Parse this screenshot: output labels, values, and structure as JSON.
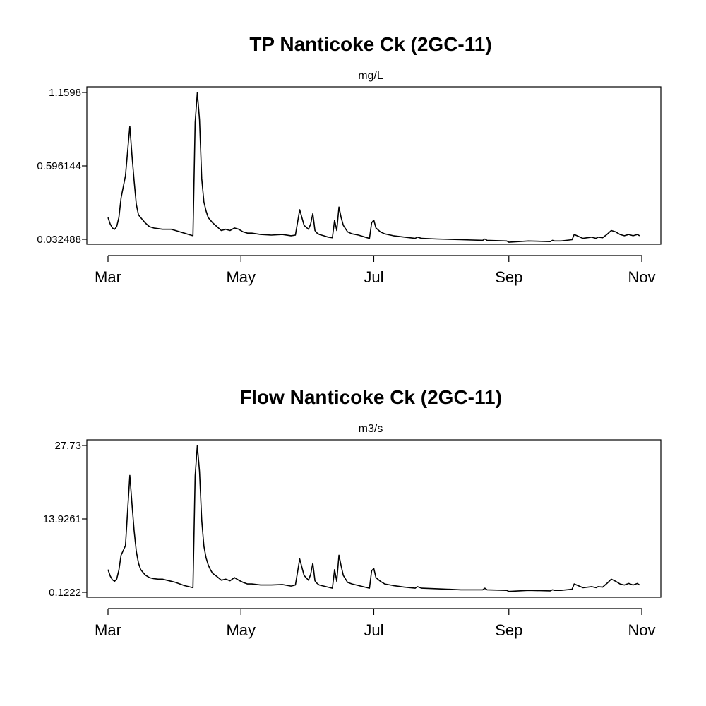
{
  "chart_data": [
    {
      "type": "line",
      "title": "TP Nanticoke Ck (2GC-11)",
      "subtitle": "mg/L",
      "yticks": [
        "1.1598",
        "0.596144",
        "0.032488"
      ],
      "ylim": [
        0.032488,
        1.1598
      ],
      "xticks": [
        "Mar",
        "May",
        "Jul",
        "Sep",
        "Nov"
      ],
      "xtick_dates": [
        "Mar 1",
        "May 1",
        "Jul 1",
        "Sep 1",
        "Nov 1"
      ],
      "xlim": [
        "Mar 1",
        "Nov 1"
      ],
      "series": [
        {
          "x": [
            "Mar 1",
            "Mar 2",
            "Mar 3",
            "Mar 4",
            "Mar 5",
            "Mar 6",
            "Mar 7",
            "Mar 9",
            "Mar 11",
            "Mar 12",
            "Mar 13",
            "Mar 14",
            "Mar 15",
            "Mar 16",
            "Mar 18",
            "Mar 20",
            "Mar 22",
            "Mar 24",
            "Mar 26",
            "Mar 28",
            "Mar 30",
            "Apr 1",
            "Apr 3",
            "Apr 5",
            "Apr 7",
            "Apr 9",
            "Apr 10",
            "Apr 11",
            "Apr 12",
            "Apr 13",
            "Apr 14",
            "Apr 15",
            "Apr 16",
            "Apr 17",
            "Apr 18",
            "Apr 20",
            "Apr 22",
            "Apr 24",
            "Apr 26",
            "Apr 28",
            "Apr 30",
            "May 2",
            "May 4",
            "May 6",
            "May 10",
            "May 15",
            "May 20",
            "May 24",
            "May 26",
            "May 28",
            "May 30",
            "Jun 1",
            "Jun 2",
            "Jun 3",
            "Jun 4",
            "Jun 5",
            "Jun 6",
            "Jun 8",
            "Jun 10",
            "Jun 12",
            "Jun 13",
            "Jun 14",
            "Jun 15",
            "Jun 16",
            "Jun 17",
            "Jun 19",
            "Jun 21",
            "Jun 24",
            "Jun 27",
            "Jun 29",
            "Jun 30",
            "Jul 1",
            "Jul 2",
            "Jul 4",
            "Jul 6",
            "Jul 10",
            "Jul 15",
            "Jul 20",
            "Jul 21",
            "Jul 23",
            "Jul 30",
            "Aug 10",
            "Aug 20",
            "Aug 21",
            "Aug 22",
            "Aug 31",
            "Sep 1",
            "Sep 10",
            "Sep 20",
            "Sep 21",
            "Sep 22",
            "Sep 25",
            "Sep 30",
            "Oct 1",
            "Oct 5",
            "Oct 9",
            "Oct 11",
            "Oct 12",
            "Oct 14",
            "Oct 16",
            "Oct 18",
            "Oct 20",
            "Oct 22",
            "Oct 24",
            "Oct 26",
            "Oct 28",
            "Oct 30",
            "Oct 31"
          ],
          "y": [
            0.2,
            0.15,
            0.12,
            0.11,
            0.13,
            0.2,
            0.35,
            0.52,
            0.9,
            0.68,
            0.48,
            0.3,
            0.22,
            0.2,
            0.16,
            0.13,
            0.12,
            0.115,
            0.11,
            0.11,
            0.11,
            0.1,
            0.09,
            0.08,
            0.07,
            0.06,
            0.93,
            1.1598,
            0.95,
            0.5,
            0.32,
            0.25,
            0.2,
            0.18,
            0.16,
            0.13,
            0.1,
            0.11,
            0.1,
            0.12,
            0.11,
            0.09,
            0.08,
            0.08,
            0.07,
            0.065,
            0.07,
            0.06,
            0.065,
            0.26,
            0.14,
            0.11,
            0.15,
            0.23,
            0.1,
            0.08,
            0.07,
            0.06,
            0.05,
            0.045,
            0.18,
            0.1,
            0.28,
            0.2,
            0.14,
            0.09,
            0.075,
            0.065,
            0.05,
            0.04,
            0.16,
            0.18,
            0.12,
            0.09,
            0.075,
            0.06,
            0.05,
            0.04,
            0.05,
            0.04,
            0.035,
            0.03,
            0.025,
            0.035,
            0.025,
            0.02,
            0.01,
            0.02,
            0.015,
            0.025,
            0.02,
            0.02,
            0.03,
            0.07,
            0.04,
            0.05,
            0.04,
            0.05,
            0.045,
            0.07,
            0.1,
            0.09,
            0.07,
            0.06,
            0.07,
            0.06,
            0.07,
            0.06
          ]
        }
      ]
    },
    {
      "type": "line",
      "title": "Flow Nanticoke Ck (2GC-11)",
      "subtitle": "m3/s",
      "yticks": [
        "27.73",
        "13.9261",
        "0.1222"
      ],
      "ylim": [
        0.1222,
        27.73
      ],
      "xticks": [
        "Mar",
        "May",
        "Jul",
        "Sep",
        "Nov"
      ],
      "xtick_dates": [
        "Mar 1",
        "May 1",
        "Jul 1",
        "Sep 1",
        "Nov 1"
      ],
      "xlim": [
        "Mar 1",
        "Nov 1"
      ],
      "series": [
        {
          "x": [
            "Mar 1",
            "Mar 2",
            "Mar 3",
            "Mar 4",
            "Mar 5",
            "Mar 6",
            "Mar 7",
            "Mar 9",
            "Mar 11",
            "Mar 12",
            "Mar 13",
            "Mar 14",
            "Mar 15",
            "Mar 16",
            "Mar 18",
            "Mar 20",
            "Mar 22",
            "Mar 24",
            "Mar 26",
            "Mar 28",
            "Mar 30",
            "Apr 1",
            "Apr 3",
            "Apr 5",
            "Apr 7",
            "Apr 9",
            "Apr 10",
            "Apr 11",
            "Apr 12",
            "Apr 13",
            "Apr 14",
            "Apr 15",
            "Apr 16",
            "Apr 17",
            "Apr 18",
            "Apr 20",
            "Apr 22",
            "Apr 24",
            "Apr 26",
            "Apr 28",
            "Apr 30",
            "May 2",
            "May 4",
            "May 6",
            "May 10",
            "May 15",
            "May 20",
            "May 24",
            "May 26",
            "May 28",
            "May 30",
            "Jun 1",
            "Jun 2",
            "Jun 3",
            "Jun 4",
            "Jun 5",
            "Jun 6",
            "Jun 8",
            "Jun 10",
            "Jun 12",
            "Jun 13",
            "Jun 14",
            "Jun 15",
            "Jun 16",
            "Jun 17",
            "Jun 19",
            "Jun 21",
            "Jun 24",
            "Jun 27",
            "Jun 29",
            "Jun 30",
            "Jul 1",
            "Jul 2",
            "Jul 4",
            "Jul 6",
            "Jul 10",
            "Jul 15",
            "Jul 20",
            "Jul 21",
            "Jul 23",
            "Jul 30",
            "Aug 10",
            "Aug 20",
            "Aug 21",
            "Aug 22",
            "Aug 31",
            "Sep 1",
            "Sep 10",
            "Sep 20",
            "Sep 21",
            "Sep 22",
            "Sep 25",
            "Sep 30",
            "Oct 1",
            "Oct 5",
            "Oct 9",
            "Oct 11",
            "Oct 12",
            "Oct 14",
            "Oct 16",
            "Oct 18",
            "Oct 20",
            "Oct 22",
            "Oct 24",
            "Oct 26",
            "Oct 28",
            "Oct 30",
            "Oct 31"
          ],
          "y": [
            4.4,
            3.2,
            2.5,
            2.2,
            2.6,
            4.3,
            7.1,
            8.9,
            22.1,
            16.8,
            11.7,
            7.8,
            5.6,
            4.4,
            3.4,
            2.9,
            2.7,
            2.6,
            2.6,
            2.4,
            2.2,
            2.0,
            1.7,
            1.4,
            1.2,
            1.0,
            22.0,
            27.73,
            22.8,
            13.7,
            8.8,
            6.6,
            5.3,
            4.4,
            3.7,
            3.1,
            2.4,
            2.6,
            2.3,
            2.9,
            2.4,
            2.0,
            1.7,
            1.7,
            1.5,
            1.5,
            1.6,
            1.3,
            1.5,
            6.4,
            3.3,
            2.4,
            3.5,
            5.6,
            2.3,
            1.8,
            1.5,
            1.3,
            1.1,
            0.9,
            4.4,
            2.2,
            7.1,
            5.1,
            3.3,
            2.0,
            1.7,
            1.4,
            1.1,
            0.9,
            4.2,
            4.6,
            2.9,
            2.2,
            1.7,
            1.4,
            1.1,
            0.9,
            1.2,
            0.9,
            0.8,
            0.6,
            0.6,
            0.9,
            0.6,
            0.5,
            0.3,
            0.5,
            0.4,
            0.6,
            0.5,
            0.5,
            0.7,
            1.7,
            1.0,
            1.2,
            1.0,
            1.2,
            1.1,
            1.8,
            2.6,
            2.2,
            1.7,
            1.5,
            1.8,
            1.5,
            1.8,
            1.5
          ]
        }
      ]
    }
  ]
}
